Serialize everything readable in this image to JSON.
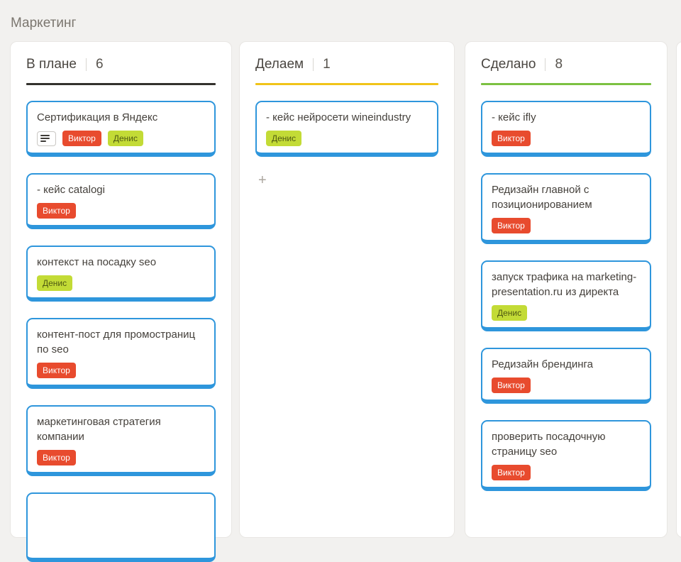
{
  "page": {
    "title": "Маркетинг"
  },
  "colors": {
    "card_border": "#2e96dc",
    "column_bg": "#ffffff",
    "page_bg": "#f2f1ef"
  },
  "labels": {
    "Виктор": {
      "bg": "#e84b2e",
      "fg": "#ffffff"
    },
    "Денис": {
      "bg": "#c3db36",
      "fg": "#4e5913"
    }
  },
  "board": {
    "columns": [
      {
        "title": "В плане",
        "count": "6",
        "underline_color": "#33312d",
        "cards": [
          {
            "title": "Сертификация в Яндекс",
            "has_description_icon": true,
            "labels": [
              "Виктор",
              "Денис"
            ]
          },
          {
            "title": "- кейс catalogi",
            "labels": [
              "Виктор"
            ]
          },
          {
            "title": "контекст на посадку seo",
            "labels": [
              "Денис"
            ]
          },
          {
            "title": "контент-пост для промостраниц по seo",
            "labels": [
              "Виктор"
            ]
          },
          {
            "title": "маркетинговая стратегия компании",
            "labels": [
              "Виктор"
            ]
          },
          {
            "title": "",
            "labels": [],
            "partial": true
          }
        ]
      },
      {
        "title": "Делаем",
        "count": "1",
        "underline_color": "#f0c419",
        "add_button": "+",
        "cards": [
          {
            "title": "- кейс нейросети wineindustry",
            "labels": [
              "Денис"
            ]
          }
        ]
      },
      {
        "title": "Сделано",
        "count": "8",
        "underline_color": "#7cc142",
        "cards": [
          {
            "title": "- кейс ifly",
            "labels": [
              "Виктор"
            ]
          },
          {
            "title": "Редизайн главной с позиционированием",
            "labels": [
              "Виктор"
            ]
          },
          {
            "title": "запуск трафика на marketing-presentation.ru из директа",
            "labels": [
              "Денис"
            ]
          },
          {
            "title": "Редизайн брендинга",
            "labels": [
              "Виктор"
            ]
          },
          {
            "title": "проверить посадочную страницу seo",
            "labels": [
              "Виктор"
            ]
          }
        ]
      }
    ]
  }
}
